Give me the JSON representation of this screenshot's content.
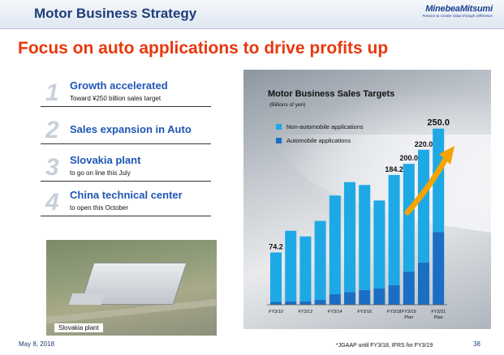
{
  "header": {
    "title": "Motor Business Strategy",
    "logo_name": "MinebeaMitsumi",
    "logo_tagline": "Passion to Create Value through Difference"
  },
  "headline": "Focus on auto applications to drive profits up",
  "items": [
    {
      "num": "1",
      "title": "Growth accelerated",
      "sub": "Toward ¥250 billion sales target"
    },
    {
      "num": "2",
      "title": "Sales expansion in Auto",
      "sub": ""
    },
    {
      "num": "3",
      "title": "Slovakia plant",
      "sub": "to go on line this July"
    },
    {
      "num": "4",
      "title": "China technical center",
      "sub": "to open this October"
    }
  ],
  "photo_label": "Slovakia plant",
  "chart_data": {
    "type": "bar",
    "stacked": true,
    "title": "Motor Business Sales Targets",
    "unit": "(Billions of yen)",
    "categories": [
      "FY3/10",
      "",
      "FY3/12",
      "",
      "FY3/14",
      "",
      "FY3/16",
      "",
      "FY3/18",
      "FY3/19\nPlan",
      "",
      "FY3/21\nPlan"
    ],
    "tick_labels": [
      {
        "index": 0,
        "lines": [
          "FY3/10"
        ]
      },
      {
        "index": 2,
        "lines": [
          "FY3/12"
        ]
      },
      {
        "index": 4,
        "lines": [
          "FY3/14"
        ]
      },
      {
        "index": 6,
        "lines": [
          "FY3/16"
        ]
      },
      {
        "index": 8,
        "lines": [
          "FY3/18"
        ]
      },
      {
        "index": 9,
        "lines": [
          "FY3/19",
          "Plan"
        ]
      },
      {
        "index": 11,
        "lines": [
          "FY3/21",
          "Plan"
        ]
      }
    ],
    "series": [
      {
        "name": "Automobile applications",
        "color": "#1a6fc4",
        "values": [
          4,
          5,
          5,
          7,
          15,
          18,
          21,
          23,
          28,
          47,
          60,
          103
        ]
      },
      {
        "name": "Non-automobile applications",
        "color": "#1ea8e6",
        "values": [
          70.2,
          100,
          92,
          112,
          140,
          156,
          149,
          125,
          156.2,
          153,
          160,
          147
        ]
      }
    ],
    "data_labels": [
      {
        "index": 0,
        "text": "74.2"
      },
      {
        "index": 8,
        "text": "184.2"
      },
      {
        "index": 9,
        "text": "200.0"
      },
      {
        "index": 10,
        "text": "220.0"
      },
      {
        "index": 11,
        "text": "250.0"
      }
    ],
    "ylim": [
      0,
      260
    ],
    "legend_position": "top-left",
    "arrow_color": "#f5a300"
  },
  "footer": {
    "date": "May 8, 2018",
    "footnote": "*JGAAP until FY3/18, IFRS for FY3/19",
    "page": "38"
  }
}
